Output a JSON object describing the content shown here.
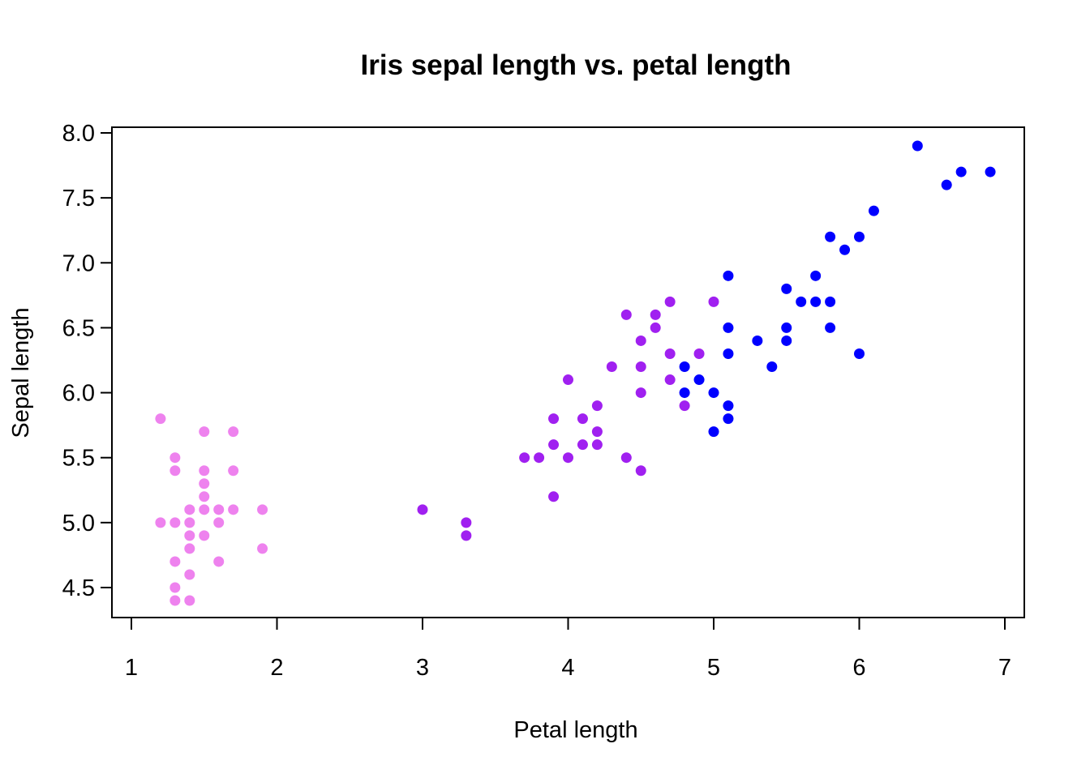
{
  "chart_data": {
    "type": "scatter",
    "title": "Iris sepal length vs. petal length",
    "xlabel": "Petal length",
    "ylabel": "Sepal length",
    "xlim": [
      1,
      7
    ],
    "ylim": [
      4.3,
      8.0
    ],
    "x_ticks": [
      1,
      2,
      3,
      4,
      5,
      6,
      7
    ],
    "x_tick_labels": [
      "1",
      "2",
      "3",
      "4",
      "5",
      "6",
      "7"
    ],
    "y_ticks": [
      4.5,
      5.0,
      5.5,
      6.0,
      6.5,
      7.0,
      7.5,
      8.0
    ],
    "y_tick_labels": [
      "4.5",
      "5.0",
      "5.5",
      "6.0",
      "6.5",
      "7.0",
      "7.5",
      "8.0"
    ],
    "grid": false,
    "legend": "none",
    "series": [
      {
        "color": "#ee82ee",
        "points": [
          [
            1.2,
            5.8
          ],
          [
            1.2,
            5.0
          ],
          [
            1.3,
            5.5
          ],
          [
            1.3,
            5.4
          ],
          [
            1.3,
            5.0
          ],
          [
            1.3,
            4.7
          ],
          [
            1.3,
            4.5
          ],
          [
            1.3,
            4.4
          ],
          [
            1.4,
            5.1
          ],
          [
            1.4,
            5.0
          ],
          [
            1.4,
            4.9
          ],
          [
            1.4,
            4.8
          ],
          [
            1.4,
            4.6
          ],
          [
            1.4,
            4.4
          ],
          [
            1.5,
            5.7
          ],
          [
            1.5,
            5.4
          ],
          [
            1.5,
            5.3
          ],
          [
            1.5,
            5.2
          ],
          [
            1.5,
            5.1
          ],
          [
            1.5,
            4.9
          ],
          [
            1.6,
            5.1
          ],
          [
            1.6,
            5.0
          ],
          [
            1.6,
            4.7
          ],
          [
            1.7,
            5.7
          ],
          [
            1.7,
            5.4
          ],
          [
            1.7,
            5.1
          ],
          [
            1.9,
            5.1
          ],
          [
            1.9,
            4.8
          ]
        ]
      },
      {
        "color": "#a020f0",
        "points": [
          [
            3.0,
            5.1
          ],
          [
            3.3,
            5.0
          ],
          [
            3.3,
            4.9
          ],
          [
            3.7,
            5.5
          ],
          [
            3.8,
            5.5
          ],
          [
            3.9,
            5.8
          ],
          [
            3.9,
            5.6
          ],
          [
            3.9,
            5.2
          ],
          [
            4.0,
            6.1
          ],
          [
            4.0,
            5.5
          ],
          [
            4.1,
            5.8
          ],
          [
            4.1,
            5.6
          ],
          [
            4.2,
            5.9
          ],
          [
            4.2,
            5.7
          ],
          [
            4.2,
            5.6
          ],
          [
            4.3,
            6.2
          ],
          [
            4.4,
            6.6
          ],
          [
            4.4,
            5.5
          ],
          [
            4.5,
            6.4
          ],
          [
            4.5,
            6.2
          ],
          [
            4.5,
            6.0
          ],
          [
            4.5,
            5.4
          ],
          [
            4.6,
            6.6
          ],
          [
            4.6,
            6.5
          ],
          [
            4.7,
            6.7
          ],
          [
            4.7,
            6.3
          ],
          [
            4.7,
            6.1
          ],
          [
            4.8,
            5.9
          ],
          [
            4.9,
            6.3
          ],
          [
            5.0,
            6.7
          ]
        ]
      },
      {
        "color": "#0000ff",
        "points": [
          [
            4.8,
            6.2
          ],
          [
            4.8,
            6.0
          ],
          [
            4.9,
            6.1
          ],
          [
            5.0,
            6.0
          ],
          [
            5.0,
            5.7
          ],
          [
            5.1,
            6.9
          ],
          [
            5.1,
            6.5
          ],
          [
            5.1,
            6.3
          ],
          [
            5.1,
            5.9
          ],
          [
            5.1,
            5.8
          ],
          [
            5.3,
            6.4
          ],
          [
            5.4,
            6.2
          ],
          [
            5.5,
            6.8
          ],
          [
            5.5,
            6.5
          ],
          [
            5.5,
            6.4
          ],
          [
            5.6,
            6.7
          ],
          [
            5.7,
            6.9
          ],
          [
            5.7,
            6.7
          ],
          [
            5.8,
            7.2
          ],
          [
            5.8,
            6.7
          ],
          [
            5.8,
            6.5
          ],
          [
            5.9,
            7.1
          ],
          [
            6.0,
            7.2
          ],
          [
            6.0,
            6.3
          ],
          [
            6.1,
            7.4
          ],
          [
            6.4,
            7.9
          ],
          [
            6.6,
            7.6
          ],
          [
            6.7,
            7.7
          ],
          [
            6.9,
            7.7
          ]
        ]
      }
    ]
  }
}
